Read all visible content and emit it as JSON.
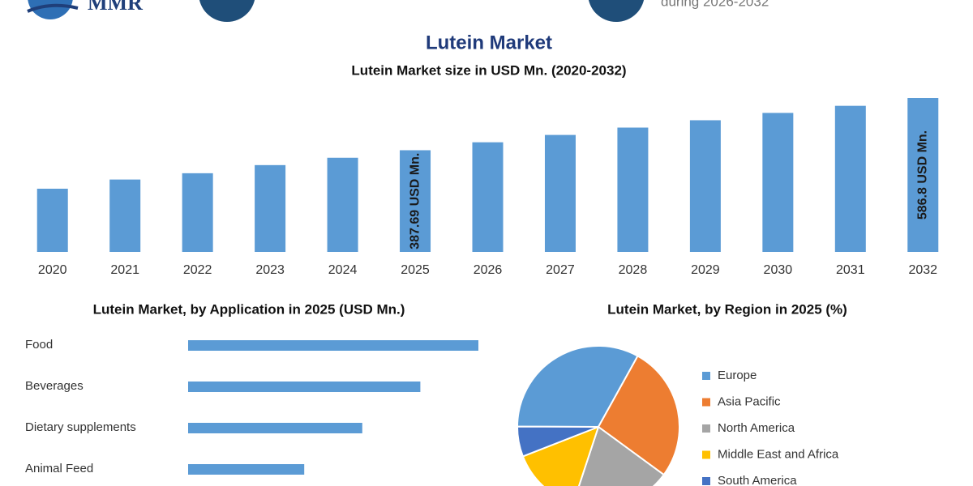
{
  "header": {
    "logo": "MMR",
    "note": "during 2026-2032"
  },
  "title": "Lutein Market",
  "chart_data": [
    {
      "type": "bar",
      "title": "Lutein Market size in USD Mn. (2020-2032)",
      "categories": [
        "2020",
        "2021",
        "2022",
        "2023",
        "2024",
        "2025",
        "2026",
        "2027",
        "2028",
        "2029",
        "2030",
        "2031",
        "2032"
      ],
      "values": [
        241,
        276,
        300,
        331,
        359,
        387.69,
        418,
        446,
        474,
        502,
        530,
        557,
        586.8
      ],
      "value_labels": [
        null,
        null,
        null,
        null,
        null,
        "387.69 USD Mn.",
        null,
        null,
        null,
        null,
        null,
        null,
        "586.8 USD Mn."
      ],
      "color": "#5b9bd5"
    },
    {
      "type": "barh",
      "title": "Lutein Market, by Application in 2025 (USD Mn.)",
      "categories": [
        "Food",
        "Beverages",
        "Dietary supplements",
        "Animal Feed"
      ],
      "values": [
        120,
        96,
        72,
        48
      ],
      "color": "#5b9bd5"
    },
    {
      "type": "pie",
      "title": "Lutein Market, by Region in 2025 (%)",
      "categories": [
        "Europe",
        "Asia Pacific",
        "North America",
        "Middle East and Africa",
        "South America"
      ],
      "values": [
        33,
        27,
        20,
        14,
        6
      ],
      "colors": [
        "#5b9bd5",
        "#ed7d31",
        "#a5a5a5",
        "#ffc000",
        "#4472c4"
      ]
    }
  ]
}
